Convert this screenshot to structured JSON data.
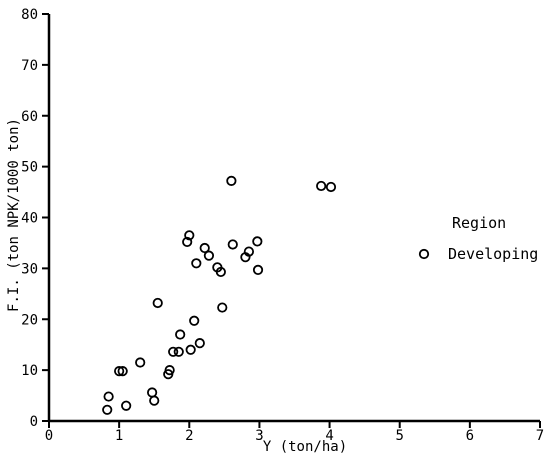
{
  "chart_data": {
    "type": "scatter",
    "xlabel": "Y (ton/ha)",
    "ylabel": "F.I. (ton NPK/1000 ton)",
    "xlim": [
      0,
      7
    ],
    "ylim": [
      0,
      80
    ],
    "x_ticks": [
      0,
      1,
      2,
      3,
      4,
      5,
      6,
      7
    ],
    "y_ticks": [
      0,
      10,
      20,
      30,
      40,
      50,
      60,
      70,
      80
    ],
    "grid": false,
    "legend": {
      "title": "Region",
      "position": "right",
      "entries": [
        "Developing"
      ]
    },
    "marker": "open-circle",
    "series": [
      {
        "name": "Developing",
        "points": [
          [
            0.83,
            2.2
          ],
          [
            0.85,
            4.8
          ],
          [
            1.0,
            9.8
          ],
          [
            1.05,
            9.8
          ],
          [
            1.1,
            3.0
          ],
          [
            1.3,
            11.5
          ],
          [
            1.47,
            5.6
          ],
          [
            1.5,
            4.0
          ],
          [
            1.55,
            23.2
          ],
          [
            1.7,
            9.2
          ],
          [
            1.72,
            10.0
          ],
          [
            1.77,
            13.6
          ],
          [
            1.85,
            13.6
          ],
          [
            1.87,
            17.0
          ],
          [
            1.97,
            35.2
          ],
          [
            2.0,
            36.5
          ],
          [
            2.02,
            14.0
          ],
          [
            2.07,
            19.7
          ],
          [
            2.1,
            31.0
          ],
          [
            2.15,
            15.3
          ],
          [
            2.22,
            34.0
          ],
          [
            2.28,
            32.5
          ],
          [
            2.4,
            30.2
          ],
          [
            2.45,
            29.3
          ],
          [
            2.47,
            22.3
          ],
          [
            2.6,
            47.2
          ],
          [
            2.62,
            34.7
          ],
          [
            2.8,
            32.2
          ],
          [
            2.85,
            33.3
          ],
          [
            2.97,
            35.3
          ],
          [
            2.98,
            29.7
          ],
          [
            3.88,
            46.2
          ],
          [
            4.02,
            46.0
          ]
        ]
      }
    ]
  }
}
